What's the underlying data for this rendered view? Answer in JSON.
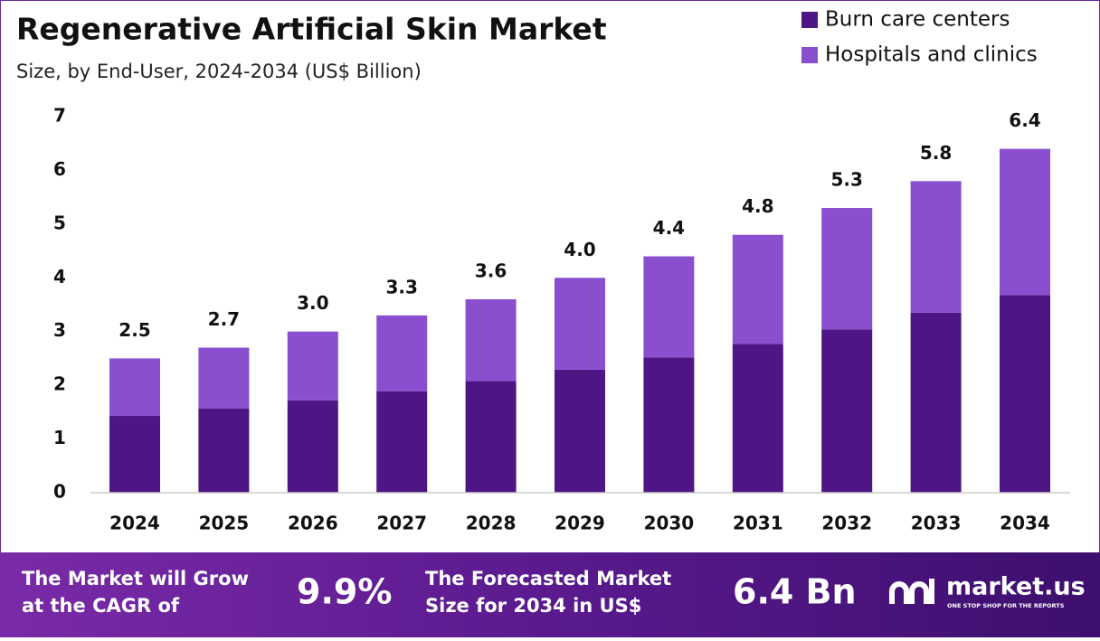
{
  "chart_data": {
    "type": "stacked-bar",
    "title": "Regenerative Artificial Skin Market",
    "subtitle": "Size, by End-User, 2024-2034 (US$ Billion)",
    "categories": [
      "2024",
      "2025",
      "2026",
      "2027",
      "2028",
      "2029",
      "2030",
      "2031",
      "2032",
      "2033",
      "2034"
    ],
    "series": [
      {
        "name": "Burn care centers",
        "color": "#4e1684",
        "values": [
          1.43,
          1.57,
          1.72,
          1.89,
          2.08,
          2.29,
          2.52,
          2.77,
          3.04,
          3.35,
          3.68
        ]
      },
      {
        "name": "Hospitals and clinics",
        "color": "#8a4fcf",
        "values": [
          1.07,
          1.13,
          1.28,
          1.41,
          1.52,
          1.71,
          1.88,
          2.03,
          2.26,
          2.45,
          2.72
        ]
      }
    ],
    "totals": {
      "values": [
        2.5,
        2.7,
        3.0,
        3.3,
        3.6,
        4.0,
        4.4,
        4.8,
        5.3,
        5.8,
        6.4
      ],
      "value_labels": [
        "2.5",
        "2.7",
        "3.0",
        "3.3",
        "3.6",
        "4.0",
        "4.4",
        "4.8",
        "5.3",
        "5.8",
        "6.4"
      ]
    },
    "ylim": [
      0,
      7
    ],
    "yticks": [
      0,
      1,
      2,
      3,
      4,
      5,
      6,
      7
    ],
    "grid": false,
    "legend": "top-right"
  },
  "footer": {
    "cagr_text": [
      "The Market will Grow",
      "at the CAGR of"
    ],
    "cagr_value": "9.9%",
    "forecast_text": [
      "The Forecasted Market",
      "Size for 2034 in US$"
    ],
    "forecast_value": "6.4 Bn",
    "logo": "market.us",
    "tagline": "ONE STOP SHOP FOR THE REPORTS"
  }
}
